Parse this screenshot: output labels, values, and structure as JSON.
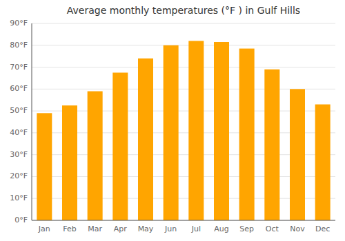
{
  "chart_data": {
    "type": "bar",
    "title": "Average monthly temperatures (°F ) in Gulf Hills",
    "categories": [
      "Jan",
      "Feb",
      "Mar",
      "Apr",
      "May",
      "Jun",
      "Jul",
      "Aug",
      "Sep",
      "Oct",
      "Nov",
      "Dec"
    ],
    "values": [
      49,
      52.5,
      59,
      67.5,
      74,
      80,
      82,
      81.5,
      78.5,
      69,
      60,
      53
    ],
    "color": "#FFA500",
    "ylim": [
      0,
      90
    ],
    "yticks": [
      {
        "value": 0,
        "label": "0°F"
      },
      {
        "value": 10,
        "label": "10°F"
      },
      {
        "value": 20,
        "label": "20°F"
      },
      {
        "value": 30,
        "label": "30°F"
      },
      {
        "value": 40,
        "label": "40°F"
      },
      {
        "value": 50,
        "label": "50°F"
      },
      {
        "value": 60,
        "label": "60°F"
      },
      {
        "value": 70,
        "label": "70°F"
      },
      {
        "value": 80,
        "label": "80°F"
      },
      {
        "value": 90,
        "label": "90°F"
      }
    ],
    "grid": true
  }
}
